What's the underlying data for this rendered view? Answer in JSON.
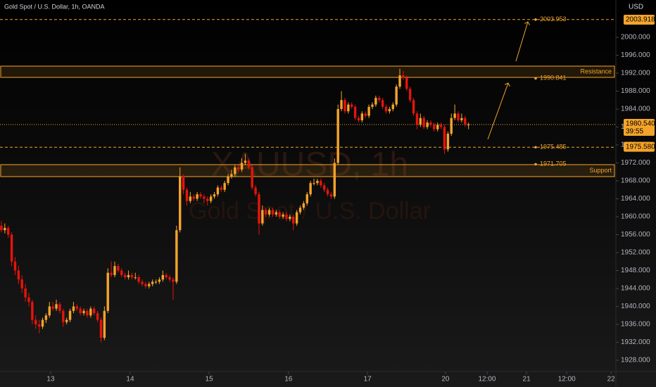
{
  "chart_data": {
    "type": "candlestick",
    "title": "Gold Spot / U.S. Dollar, 1h, OANDA",
    "currency": "USD",
    "watermark": [
      "XAUUSD, 1h",
      "Gold Spot / U.S. Dollar"
    ],
    "up_color": "#f4a42a",
    "down_color": "#e5140c",
    "ylim": [
      1925.49,
      2008.31
    ],
    "xlim": [
      -0.4,
      178.9
    ],
    "yticks": [
      {
        "value": 1928,
        "label": "1928.000"
      },
      {
        "value": 1932,
        "label": "1932.000"
      },
      {
        "value": 1936,
        "label": "1936.000"
      },
      {
        "value": 1940,
        "label": "1940.000"
      },
      {
        "value": 1944,
        "label": "1944.000"
      },
      {
        "value": 1948,
        "label": "1948.000"
      },
      {
        "value": 1952,
        "label": "1952.000"
      },
      {
        "value": 1956,
        "label": "1956.000"
      },
      {
        "value": 1960,
        "label": "1960.000"
      },
      {
        "value": 1964,
        "label": "1964.000"
      },
      {
        "value": 1968,
        "label": "1968.000"
      },
      {
        "value": 1972,
        "label": "1972.000"
      },
      {
        "value": 1976,
        "label": "1976.000"
      },
      {
        "value": 1980,
        "label": "1980.000"
      },
      {
        "value": 1984,
        "label": "1984.000"
      },
      {
        "value": 1988,
        "label": "1988.000"
      },
      {
        "value": 1992,
        "label": "1992.000"
      },
      {
        "value": 1996,
        "label": "1996.000"
      },
      {
        "value": 2000,
        "label": "2000.000"
      }
    ],
    "xticks": [
      {
        "value": 14.35,
        "label": "13"
      },
      {
        "value": 37.5,
        "label": "14"
      },
      {
        "value": 60.5,
        "label": "15"
      },
      {
        "value": 83.6,
        "label": "16"
      },
      {
        "value": 106.6,
        "label": "17"
      },
      {
        "value": 129.3,
        "label": "20"
      },
      {
        "value": 141.4,
        "label": "12:00"
      },
      {
        "value": 152.9,
        "label": "21"
      },
      {
        "value": 164.6,
        "label": "12:00"
      },
      {
        "value": 177.5,
        "label": "22"
      }
    ],
    "zones": [
      {
        "name": "Resistance",
        "low": 1991.06,
        "high": 1993.57
      },
      {
        "name": "Support",
        "low": 1968.94,
        "high": 1971.61
      }
    ],
    "line_levels": [
      2003.953,
      1975.485
    ],
    "point_levels": [
      1990.841,
      1971.705
    ],
    "tags": [
      {
        "value": 2003.918,
        "label": "2003.918"
      },
      {
        "value": 1975.58,
        "label": "1975.580"
      }
    ],
    "last_price": {
      "value": 1980.54,
      "label": "1980.540"
    },
    "countdown": "39:55",
    "ohlc": [
      [
        1958,
        1959,
        1956.5,
        1957
      ],
      [
        1957,
        1958.5,
        1956.3,
        1957.5
      ],
      [
        1957.5,
        1958,
        1955.3,
        1956
      ],
      [
        1956,
        1956.5,
        1949,
        1950
      ],
      [
        1950,
        1951,
        1947,
        1948
      ],
      [
        1948,
        1949,
        1945,
        1946
      ],
      [
        1946,
        1947,
        1943,
        1944
      ],
      [
        1944,
        1945,
        1941,
        1942
      ],
      [
        1942,
        1943,
        1940,
        1941
      ],
      [
        1941,
        1941.5,
        1936,
        1937
      ],
      [
        1937,
        1938,
        1935,
        1936
      ],
      [
        1936,
        1937,
        1934,
        1935.5
      ],
      [
        1935.5,
        1937.5,
        1935,
        1937
      ],
      [
        1937,
        1938.5,
        1936.3,
        1938
      ],
      [
        1938,
        1941,
        1937.5,
        1940
      ],
      [
        1940,
        1941,
        1939,
        1939.5
      ],
      [
        1939.5,
        1941.5,
        1939,
        1940.5
      ],
      [
        1940.5,
        1941,
        1938.5,
        1939
      ],
      [
        1939,
        1939.5,
        1935.5,
        1936.5
      ],
      [
        1936.5,
        1937.5,
        1936,
        1937
      ],
      [
        1937,
        1939.5,
        1936.5,
        1939
      ],
      [
        1939,
        1941,
        1938.5,
        1940
      ],
      [
        1940,
        1940.5,
        1939,
        1939.5
      ],
      [
        1939.5,
        1940,
        1938,
        1938.5
      ],
      [
        1938.5,
        1939.5,
        1938,
        1939
      ],
      [
        1939,
        1939.5,
        1937.5,
        1938
      ],
      [
        1938,
        1940,
        1937.5,
        1939.5
      ],
      [
        1939.5,
        1940,
        1938,
        1938.5
      ],
      [
        1938.5,
        1939,
        1936.5,
        1937
      ],
      [
        1937,
        1937.5,
        1932,
        1933
      ],
      [
        1933,
        1940,
        1932.5,
        1939
      ],
      [
        1939,
        1948.5,
        1938.5,
        1947.5
      ],
      [
        1947.5,
        1950,
        1946.5,
        1947
      ],
      [
        1947,
        1950,
        1946.5,
        1949
      ],
      [
        1949,
        1949.5,
        1947.5,
        1948
      ],
      [
        1948,
        1948.5,
        1946.5,
        1947
      ],
      [
        1947,
        1947.5,
        1946,
        1946.5
      ],
      [
        1946.5,
        1948,
        1946,
        1947
      ],
      [
        1947,
        1947.5,
        1946,
        1946.5
      ],
      [
        1946.5,
        1947.5,
        1946,
        1946.5
      ],
      [
        1946.5,
        1947,
        1945,
        1945.5
      ],
      [
        1945.5,
        1946,
        1944.5,
        1945
      ],
      [
        1945,
        1945.5,
        1944,
        1944.5
      ],
      [
        1944.5,
        1945.5,
        1944,
        1945
      ],
      [
        1945,
        1946,
        1944.5,
        1945.5
      ],
      [
        1945.5,
        1946,
        1945,
        1945.5
      ],
      [
        1945.5,
        1946.5,
        1945,
        1946
      ],
      [
        1946,
        1948,
        1945.5,
        1947
      ],
      [
        1947,
        1947.5,
        1946,
        1946.5
      ],
      [
        1946.5,
        1947,
        1945.5,
        1946
      ],
      [
        1946,
        1946.5,
        1941.5,
        1945.5
      ],
      [
        1945.5,
        1958,
        1945,
        1957
      ],
      [
        1957,
        1971,
        1956.5,
        1969
      ],
      [
        1969,
        1969.5,
        1965,
        1966
      ],
      [
        1966,
        1966.5,
        1962.5,
        1963.5
      ],
      [
        1963.5,
        1965.5,
        1963,
        1964.5
      ],
      [
        1964.5,
        1965,
        1963.5,
        1964
      ],
      [
        1964,
        1965.5,
        1963.5,
        1965
      ],
      [
        1965,
        1965.5,
        1964,
        1964.5
      ],
      [
        1964.5,
        1965,
        1963,
        1964
      ],
      [
        1964,
        1964.5,
        1962.5,
        1963.5
      ],
      [
        1963.5,
        1965,
        1963,
        1964.5
      ],
      [
        1964.5,
        1965.5,
        1964,
        1965
      ],
      [
        1965,
        1967,
        1964.5,
        1966.5
      ],
      [
        1966.5,
        1967,
        1965.5,
        1966
      ],
      [
        1966,
        1968,
        1965.5,
        1967.5
      ],
      [
        1967.5,
        1969.5,
        1967,
        1969
      ],
      [
        1969,
        1970.5,
        1968.5,
        1969.5
      ],
      [
        1969.5,
        1971.5,
        1969,
        1971
      ],
      [
        1971,
        1971.5,
        1970,
        1970.5
      ],
      [
        1970.5,
        1973,
        1970,
        1972
      ],
      [
        1972,
        1974,
        1971.5,
        1972.5
      ],
      [
        1972.5,
        1973,
        1970.5,
        1971
      ],
      [
        1971,
        1971.5,
        1966,
        1966.5
      ],
      [
        1966.5,
        1967,
        1964.5,
        1965
      ],
      [
        1965,
        1965.5,
        1956,
        1958.5
      ],
      [
        1958.5,
        1962.5,
        1958,
        1961.5
      ],
      [
        1961.5,
        1962,
        1960,
        1960.5
      ],
      [
        1960.5,
        1962,
        1960,
        1961.5
      ],
      [
        1961.5,
        1962,
        1960,
        1960.5
      ],
      [
        1960.5,
        1961.5,
        1960,
        1961
      ],
      [
        1961,
        1961.5,
        1959.5,
        1960
      ],
      [
        1960,
        1961,
        1959.5,
        1960.5
      ],
      [
        1960.5,
        1961,
        1959,
        1959.5
      ],
      [
        1959.5,
        1960.5,
        1959,
        1960
      ],
      [
        1960,
        1960.5,
        1957,
        1958.5
      ],
      [
        1958.5,
        1961.5,
        1958,
        1961
      ],
      [
        1961,
        1962.5,
        1960.5,
        1962
      ],
      [
        1962,
        1963.5,
        1961.5,
        1963
      ],
      [
        1963,
        1965.5,
        1962.5,
        1965
      ],
      [
        1965,
        1968,
        1964.5,
        1967.5
      ],
      [
        1967.5,
        1968.5,
        1967,
        1967.5
      ],
      [
        1967.5,
        1968.5,
        1967,
        1968
      ],
      [
        1968,
        1968.5,
        1966.5,
        1967
      ],
      [
        1967,
        1967.5,
        1965.5,
        1966
      ],
      [
        1966,
        1966.5,
        1964.5,
        1965
      ],
      [
        1965,
        1965.5,
        1964,
        1964.5
      ],
      [
        1964.5,
        1973,
        1964,
        1972
      ],
      [
        1972,
        1985,
        1971.5,
        1984
      ],
      [
        1984,
        1988,
        1983.5,
        1986
      ],
      [
        1986,
        1986.5,
        1983,
        1983.5
      ],
      [
        1983.5,
        1985.5,
        1983,
        1985
      ],
      [
        1985,
        1985.5,
        1984,
        1984.5
      ],
      [
        1984.5,
        1985,
        1981.5,
        1982
      ],
      [
        1982,
        1982.5,
        1981,
        1981.5
      ],
      [
        1981.5,
        1983.5,
        1981,
        1983
      ],
      [
        1983,
        1983.5,
        1982,
        1982.5
      ],
      [
        1982.5,
        1985,
        1982,
        1984.5
      ],
      [
        1984.5,
        1985.5,
        1984,
        1985
      ],
      [
        1985,
        1987,
        1984.5,
        1986.5
      ],
      [
        1986.5,
        1987,
        1985.5,
        1986
      ],
      [
        1986,
        1986.5,
        1984,
        1984.5
      ],
      [
        1984.5,
        1985,
        1983,
        1983.5
      ],
      [
        1983.5,
        1984.5,
        1983,
        1984
      ],
      [
        1984,
        1985.5,
        1983.5,
        1985
      ],
      [
        1985,
        1989.5,
        1984.5,
        1989
      ],
      [
        1989,
        1993,
        1988.5,
        1991.5
      ],
      [
        1991.5,
        1992.5,
        1990.5,
        1991
      ],
      [
        1991,
        1991.5,
        1988,
        1988.5
      ],
      [
        1988.5,
        1989,
        1985.5,
        1986
      ],
      [
        1986,
        1986.5,
        1982.5,
        1983
      ],
      [
        1983,
        1983.5,
        1979.5,
        1980.5
      ],
      [
        1980.5,
        1983,
        1980,
        1982
      ],
      [
        1982,
        1982.5,
        1979.5,
        1980
      ],
      [
        1980,
        1981.5,
        1979.5,
        1981
      ],
      [
        1981,
        1981.5,
        1980,
        1980.5
      ],
      [
        1980.5,
        1981,
        1979,
        1979.5
      ],
      [
        1979.5,
        1981,
        1979,
        1980.5
      ],
      [
        1980.5,
        1981,
        1979.5,
        1980
      ],
      [
        1980,
        1980.5,
        1974,
        1975
      ],
      [
        1975,
        1979,
        1974.5,
        1978.5
      ],
      [
        1978.5,
        1983,
        1978,
        1982
      ],
      [
        1982,
        1985,
        1981.5,
        1983
      ],
      [
        1983,
        1983.5,
        1981,
        1981.5
      ],
      [
        1981.5,
        1983,
        1981,
        1982
      ],
      [
        1982,
        1982.5,
        1980,
        1980.5
      ],
      [
        1980.5,
        1981,
        1979.5,
        1980.54
      ]
    ]
  }
}
